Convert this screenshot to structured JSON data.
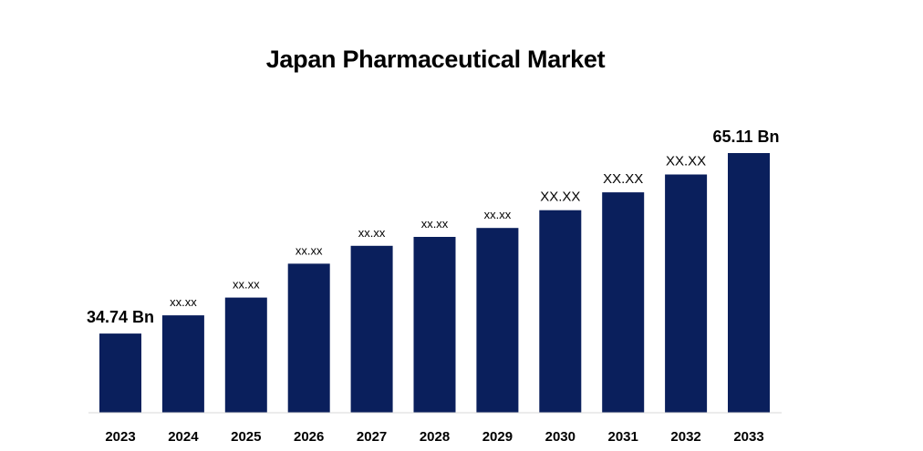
{
  "chart_data": {
    "type": "bar",
    "title": "Japan Pharmaceutical Market",
    "categories": [
      "2023",
      "2024",
      "2025",
      "2026",
      "2027",
      "2028",
      "2029",
      "2030",
      "2031",
      "2032",
      "2033"
    ],
    "values": [
      34.74,
      37.8,
      40.8,
      46.5,
      49.5,
      51.0,
      52.5,
      55.5,
      58.5,
      61.5,
      65.11
    ],
    "data_labels": [
      "34.74 Bn",
      "xx.xx",
      "xx.xx",
      "xx.xx",
      "xx.xx",
      "xx.xx",
      "xx.xx",
      "XX.XX",
      "XX.XX",
      "XX.XX",
      "65.11 Bn"
    ],
    "xlabel": "",
    "ylabel": "",
    "ylim": [
      30,
      65.11
    ],
    "grid": false,
    "legend": "none",
    "bar_color": "#0a1f5c"
  }
}
